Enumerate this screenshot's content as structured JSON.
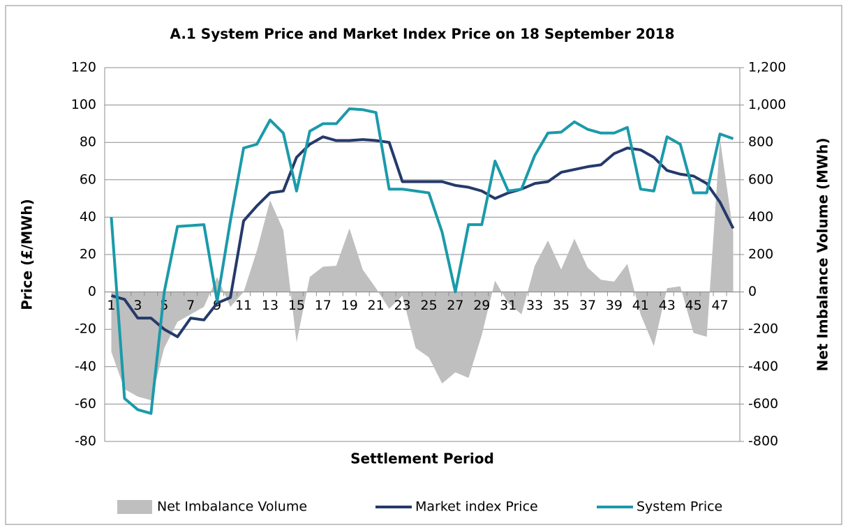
{
  "chart_data": {
    "type": "line",
    "title": "A.1 System Price and Market Index Price on 18 September 2018",
    "x_label": "Settlement Period",
    "y_label": "Price (£/MWh)",
    "y2_label": "Net Imbalance Volume (MWh)",
    "categories": [
      "1",
      null,
      "3",
      null,
      "5",
      null,
      "7",
      null,
      "9",
      null,
      "11",
      null,
      "13",
      null,
      "15",
      null,
      "17",
      null,
      "19",
      null,
      "21",
      null,
      "23",
      null,
      "25",
      null,
      "27",
      null,
      "29",
      null,
      "31",
      null,
      "33",
      null,
      "35",
      null,
      "37",
      null,
      "39",
      null,
      "41",
      null,
      "43",
      null,
      "45",
      null,
      "47",
      null
    ],
    "ylim": [
      -80,
      120
    ],
    "yticks": [
      -80,
      -60,
      -40,
      -20,
      0,
      20,
      40,
      60,
      80,
      100,
      120
    ],
    "y2lim": [
      -800,
      1200
    ],
    "y2ticks": [
      -800,
      -600,
      -400,
      -200,
      0,
      200,
      400,
      600,
      800,
      {
        "value": 1000,
        "label": "1,000"
      },
      {
        "value": 1200,
        "label": "1,200"
      }
    ],
    "grid": true,
    "legend": "bottom",
    "series": [
      {
        "name": "Net Imbalance Volume",
        "type": "area",
        "axis": "y2",
        "color": "#bfbfbf",
        "values": [
          -320,
          -520,
          -560,
          -580,
          -300,
          -160,
          -120,
          -80,
          80,
          -80,
          0,
          220,
          490,
          330,
          -270,
          80,
          135,
          140,
          340,
          120,
          20,
          -90,
          -20,
          -300,
          -350,
          -490,
          -430,
          -460,
          -230,
          60,
          -60,
          -120,
          140,
          275,
          120,
          285,
          130,
          65,
          55,
          150,
          -120,
          -290,
          20,
          30,
          -220,
          -240,
          820,
          320
        ]
      },
      {
        "name": "Market index Price",
        "type": "line",
        "color": "#253a6b",
        "values": [
          -2,
          -4,
          -14,
          -14,
          -20,
          -24,
          -14,
          -15,
          -6,
          -3,
          38,
          46,
          53,
          54,
          72,
          79,
          83,
          81,
          81,
          81.5,
          81,
          80,
          59,
          59,
          59,
          59,
          57,
          56,
          54,
          50,
          53,
          55,
          58,
          59,
          64,
          65.5,
          67,
          68,
          74,
          77,
          76,
          72,
          65,
          63,
          62,
          58,
          48,
          34
        ]
      },
      {
        "name": "System Price",
        "type": "line",
        "color": "#1b9aaa",
        "values": [
          40,
          -57,
          -63,
          -65,
          0,
          35,
          35.5,
          36,
          -5,
          38,
          77,
          79,
          92,
          85,
          54,
          86,
          90,
          90,
          98,
          97.5,
          96,
          55,
          55,
          54,
          53,
          32,
          0,
          36,
          36,
          70,
          54,
          55,
          73,
          85,
          85.5,
          91,
          87,
          85,
          85,
          88,
          55,
          54,
          83,
          79,
          53,
          53,
          84.5,
          82
        ]
      }
    ]
  }
}
